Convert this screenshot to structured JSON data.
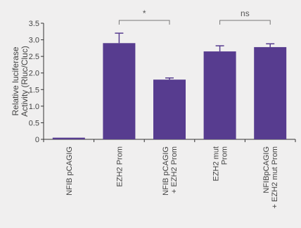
{
  "chart_data": {
    "type": "bar",
    "ylabel": [
      "Relative luciferase",
      "Activity (Rluc/Cluc)"
    ],
    "ylim": [
      0,
      3.5
    ],
    "yticks": [
      "0",
      "0.5",
      "1.0",
      "1.5",
      "2.0",
      "2.5",
      "3.0",
      "3.5"
    ],
    "categories": [
      [
        "NFIB pCAGIG"
      ],
      [
        "EZH2 Prom"
      ],
      [
        "NFIB pCAGIG",
        "+ EZH2 Prom"
      ],
      [
        "EZH2 mut",
        "Prom"
      ],
      [
        "NFIBpCAGIG",
        "+ EZH2 mut Prom"
      ]
    ],
    "values": [
      0.05,
      2.9,
      1.8,
      2.65,
      2.78
    ],
    "errors": [
      0.0,
      0.3,
      0.05,
      0.17,
      0.1
    ],
    "bar_color": "#573c8f",
    "significance": [
      {
        "from": 1,
        "to": 2,
        "label": "*"
      },
      {
        "from": 3,
        "to": 4,
        "label": "ns"
      }
    ]
  }
}
